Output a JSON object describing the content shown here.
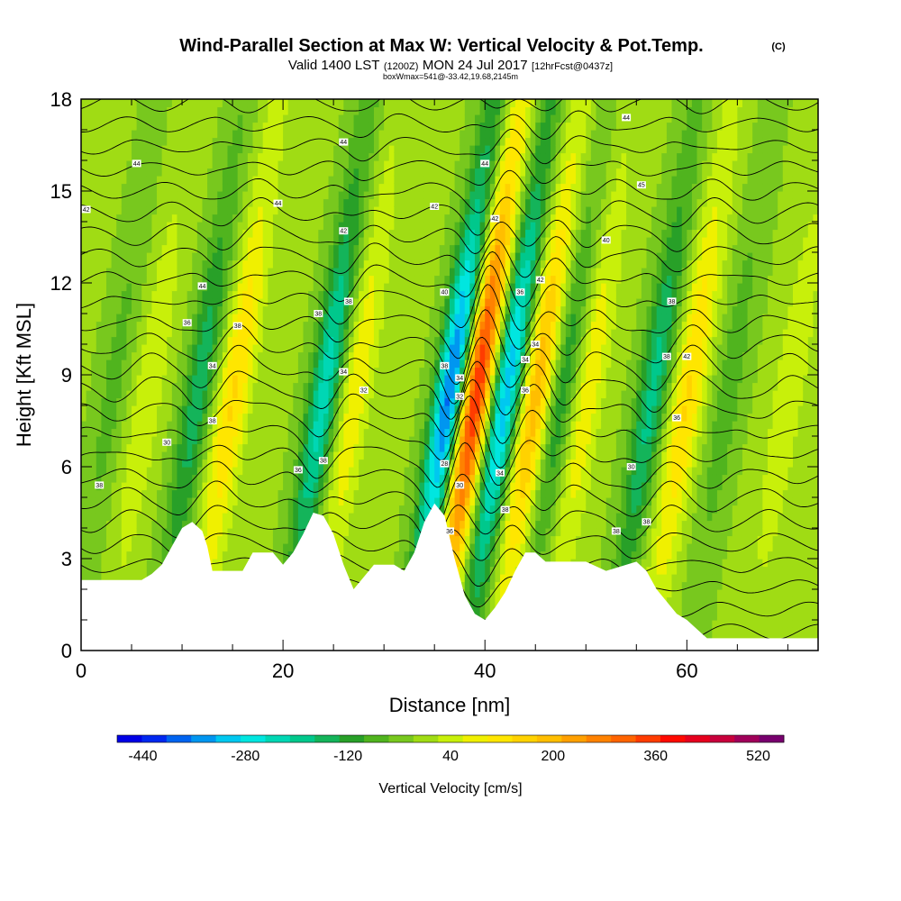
{
  "title": "Wind-Parallel Section at Max W: Vertical Velocity & Pot.Temp.",
  "title_mark": "(C)",
  "subtitle": {
    "valid_prefix": "Valid 1400 LST",
    "utc": "(1200Z)",
    "date": "MON 24 Jul 2017",
    "forecast": "[12hrFcst@0437z]"
  },
  "box_info": "boxWmax=541@-33.42,19.68,2145m",
  "chart_data": {
    "type": "heatmap",
    "xlabel": "Distance [nm]",
    "ylabel": "Height [Kft MSL]",
    "xlim": [
      0,
      73
    ],
    "ylim": [
      0,
      18
    ],
    "x_ticks": [
      0,
      20,
      40,
      60
    ],
    "y_ticks": [
      0,
      3,
      6,
      9,
      12,
      15,
      18
    ],
    "field": "Vertical Velocity [cm/s]",
    "overlay": "Potential temperature contours",
    "updraft_axes_x_at_6kft": [
      5.5,
      14,
      26,
      38,
      44,
      49,
      59,
      69
    ],
    "downdraft_axes_x_at_6kft": [
      2,
      10.5,
      23,
      35.5,
      41,
      46.5,
      55.5,
      63
    ],
    "updraft_amplitudes_cm_s": [
      70,
      160,
      110,
      420,
      230,
      110,
      160,
      70
    ],
    "downdraft_amplitudes_cm_s": [
      60,
      150,
      230,
      400,
      330,
      130,
      180,
      70
    ],
    "wave_tilt_x_per_kft": 0.46,
    "terrain_kft": [
      [
        0,
        2.3
      ],
      [
        2,
        2.3
      ],
      [
        4,
        2.3
      ],
      [
        6,
        2.3
      ],
      [
        7,
        2.5
      ],
      [
        8,
        2.8
      ],
      [
        9,
        3.4
      ],
      [
        10,
        4.0
      ],
      [
        11,
        4.2
      ],
      [
        12,
        3.9
      ],
      [
        12.5,
        3.4
      ],
      [
        13,
        2.6
      ],
      [
        16,
        2.6
      ],
      [
        17,
        3.2
      ],
      [
        19,
        3.2
      ],
      [
        20,
        2.8
      ],
      [
        21,
        3.2
      ],
      [
        22,
        3.8
      ],
      [
        23,
        4.5
      ],
      [
        24,
        4.4
      ],
      [
        25,
        3.8
      ],
      [
        26,
        2.8
      ],
      [
        27,
        2.0
      ],
      [
        28,
        2.4
      ],
      [
        29,
        2.8
      ],
      [
        31,
        2.8
      ],
      [
        32,
        2.6
      ],
      [
        33,
        3.2
      ],
      [
        34,
        4.2
      ],
      [
        35,
        4.8
      ],
      [
        36,
        4.4
      ],
      [
        37,
        3.0
      ],
      [
        38,
        1.8
      ],
      [
        39,
        1.2
      ],
      [
        40,
        1.0
      ],
      [
        41,
        1.4
      ],
      [
        42,
        1.9
      ],
      [
        43,
        2.6
      ],
      [
        44,
        3.2
      ],
      [
        45,
        3.2
      ],
      [
        46,
        2.9
      ],
      [
        50,
        2.9
      ],
      [
        52,
        2.6
      ],
      [
        55,
        2.9
      ],
      [
        56,
        2.6
      ],
      [
        57,
        2.0
      ],
      [
        58,
        1.6
      ],
      [
        59,
        1.2
      ],
      [
        60,
        1.0
      ],
      [
        61,
        0.7
      ],
      [
        62,
        0.4
      ],
      [
        73,
        0.4
      ]
    ],
    "contour_labels": [
      {
        "x": 1.8,
        "y": 5.4,
        "text": "38"
      },
      {
        "x": 8.5,
        "y": 6.8,
        "text": "30"
      },
      {
        "x": 5.5,
        "y": 15.9,
        "text": "44"
      },
      {
        "x": 0.5,
        "y": 14.4,
        "text": "42"
      },
      {
        "x": 10.5,
        "y": 10.7,
        "text": "36"
      },
      {
        "x": 12,
        "y": 11.9,
        "text": "44"
      },
      {
        "x": 13,
        "y": 9.3,
        "text": "34"
      },
      {
        "x": 15.5,
        "y": 10.6,
        "text": "38"
      },
      {
        "x": 13,
        "y": 7.5,
        "text": "38"
      },
      {
        "x": 19.5,
        "y": 14.6,
        "text": "44"
      },
      {
        "x": 26,
        "y": 16.6,
        "text": "44"
      },
      {
        "x": 26,
        "y": 13.7,
        "text": "42"
      },
      {
        "x": 23.5,
        "y": 11.0,
        "text": "38"
      },
      {
        "x": 26.5,
        "y": 11.4,
        "text": "38"
      },
      {
        "x": 26,
        "y": 9.1,
        "text": "34"
      },
      {
        "x": 28,
        "y": 8.5,
        "text": "32"
      },
      {
        "x": 24,
        "y": 6.2,
        "text": "38"
      },
      {
        "x": 21.5,
        "y": 5.9,
        "text": "36"
      },
      {
        "x": 35,
        "y": 14.5,
        "text": "42"
      },
      {
        "x": 36,
        "y": 11.7,
        "text": "40"
      },
      {
        "x": 36,
        "y": 9.3,
        "text": "38"
      },
      {
        "x": 37.5,
        "y": 8.9,
        "text": "34"
      },
      {
        "x": 37.5,
        "y": 8.3,
        "text": "32"
      },
      {
        "x": 36,
        "y": 6.1,
        "text": "28"
      },
      {
        "x": 37.5,
        "y": 5.4,
        "text": "30"
      },
      {
        "x": 36.5,
        "y": 3.9,
        "text": "36"
      },
      {
        "x": 40,
        "y": 15.9,
        "text": "44"
      },
      {
        "x": 41,
        "y": 14.1,
        "text": "42"
      },
      {
        "x": 43.5,
        "y": 11.7,
        "text": "36"
      },
      {
        "x": 45.5,
        "y": 12.1,
        "text": "42"
      },
      {
        "x": 45,
        "y": 10.0,
        "text": "34"
      },
      {
        "x": 44,
        "y": 9.5,
        "text": "34"
      },
      {
        "x": 44,
        "y": 8.5,
        "text": "36"
      },
      {
        "x": 41.5,
        "y": 5.8,
        "text": "34"
      },
      {
        "x": 42,
        "y": 4.6,
        "text": "38"
      },
      {
        "x": 54,
        "y": 17.4,
        "text": "44"
      },
      {
        "x": 55.5,
        "y": 15.2,
        "text": "45"
      },
      {
        "x": 52,
        "y": 13.4,
        "text": "40"
      },
      {
        "x": 58.5,
        "y": 11.4,
        "text": "38"
      },
      {
        "x": 58,
        "y": 9.6,
        "text": "38"
      },
      {
        "x": 60,
        "y": 9.6,
        "text": "42"
      },
      {
        "x": 59,
        "y": 7.6,
        "text": "36"
      },
      {
        "x": 54.5,
        "y": 6.0,
        "text": "30"
      },
      {
        "x": 56,
        "y": 4.2,
        "text": "38"
      },
      {
        "x": 53,
        "y": 3.9,
        "text": "38"
      }
    ]
  },
  "colorbar": {
    "title": "Vertical Velocity [cm/s]",
    "bounds": [
      -480,
      560
    ],
    "step": 40,
    "tick_values": [
      -440,
      -280,
      -120,
      40,
      200,
      360,
      520
    ],
    "tick_labels": [
      "-440",
      "-280",
      "-120",
      "40",
      "200",
      "360",
      "520"
    ],
    "colors": [
      "#0000e6",
      "#0028f0",
      "#0064f0",
      "#0096f0",
      "#00c8f0",
      "#00e6e0",
      "#00d7b4",
      "#00c88c",
      "#14b45a",
      "#28a028",
      "#50b41e",
      "#78c81e",
      "#a0dc14",
      "#c8f00a",
      "#f0f000",
      "#ffe600",
      "#ffd200",
      "#ffbe00",
      "#ffa000",
      "#ff8200",
      "#ff6400",
      "#ff3c00",
      "#ff0a00",
      "#e6001e",
      "#c8003c",
      "#a0005a",
      "#78006e"
    ]
  }
}
